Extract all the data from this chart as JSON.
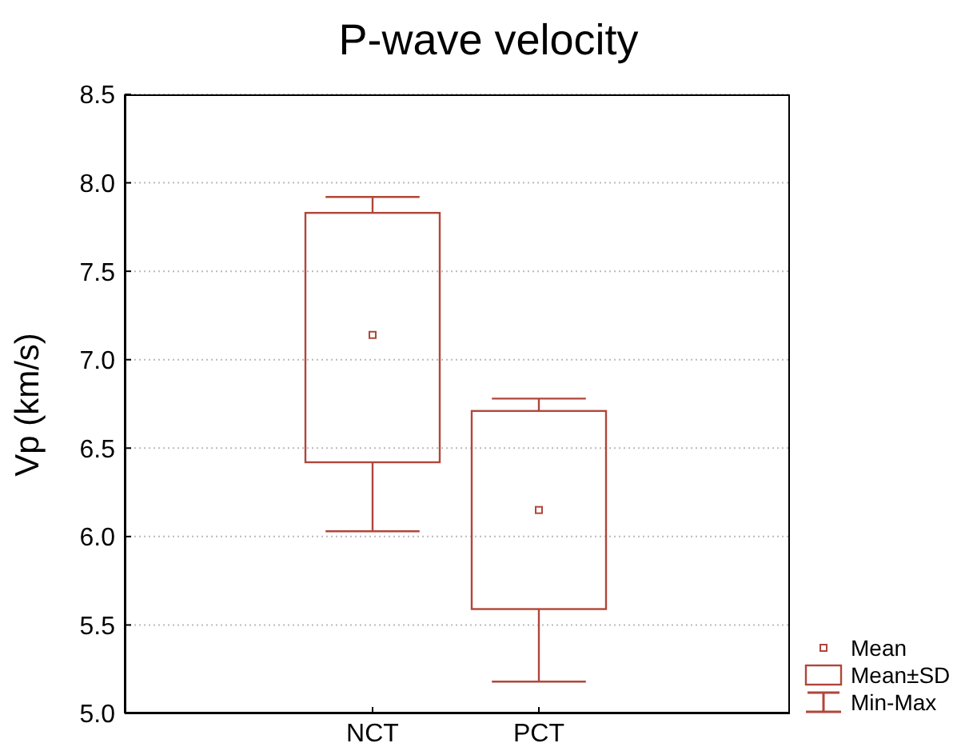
{
  "chart_data": {
    "type": "box",
    "title": "P-wave velocity",
    "ylabel": "Vp (km/s)",
    "categories": [
      "NCT",
      "PCT"
    ],
    "color": "#b0463a",
    "boxes": [
      {
        "low": 6.03,
        "q1": 6.42,
        "mean": 7.14,
        "q3": 7.83,
        "high": 7.92
      },
      {
        "low": 5.18,
        "q1": 5.59,
        "mean": 6.15,
        "q3": 6.71,
        "high": 6.78
      }
    ],
    "ylim": [
      5,
      8.5
    ],
    "yticks": [
      {
        "value": 5,
        "label": "5.0"
      },
      {
        "value": 5.5,
        "label": "5.5"
      },
      {
        "value": 6,
        "label": "6.0"
      },
      {
        "value": 6.5,
        "label": "6.5"
      },
      {
        "value": 7,
        "label": "7.0"
      },
      {
        "value": 7.5,
        "label": "7.5"
      },
      {
        "value": 8,
        "label": "8.0"
      },
      {
        "value": 8.5,
        "label": "8.5"
      }
    ],
    "grid": "y",
    "annotations": [
      "Mean",
      "Mean±SD",
      "Min-Max"
    ]
  }
}
